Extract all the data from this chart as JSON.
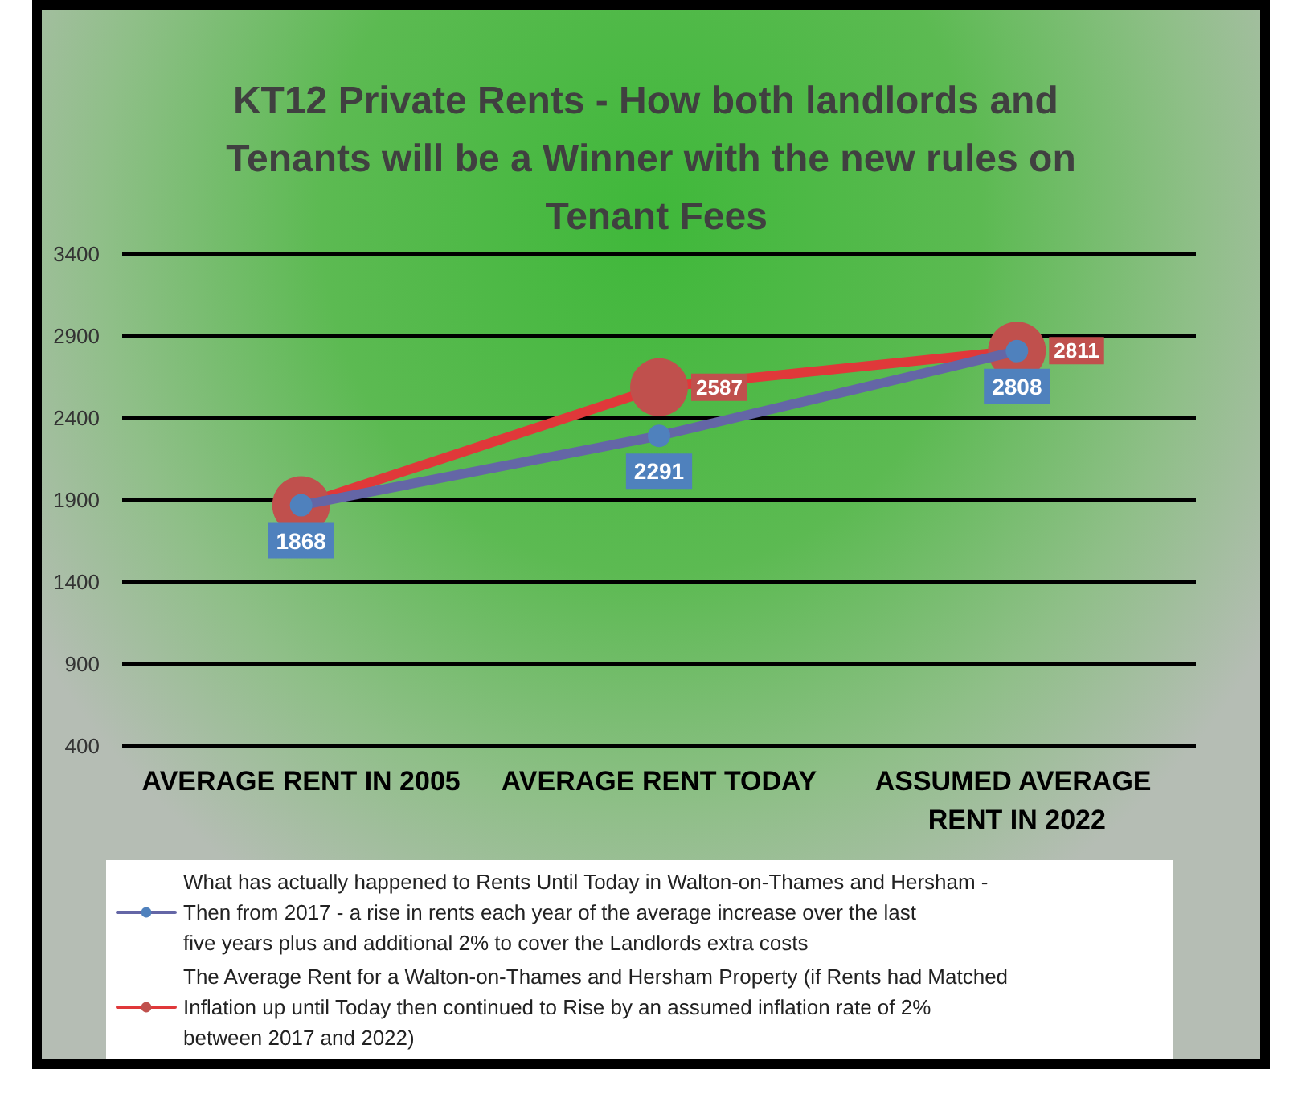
{
  "chart_data": {
    "type": "line",
    "title": "KT12 Private Rents - How both landlords and Tenants will be a Winner with the new rules on Tenant Fees",
    "categories": [
      "AVERAGE RENT IN 2005",
      "AVERAGE RENT TODAY",
      "ASSUMED AVERAGE RENT IN 2022"
    ],
    "series": [
      {
        "name": "What has actually happened to Rents Until Today in Walton-on-Thames and Hersham - Then from 2017 - a rise in rents each year of the average increase over the last five years plus and additional 2% to cover the Landlords extra costs",
        "color": "#6466a6",
        "values": [
          1868,
          2291,
          2808
        ],
        "value_labels": [
          "1868",
          "2291",
          "2808"
        ]
      },
      {
        "name": "The Average Rent for a Walton-on-Thames and Hersham Property (if Rents had Matched Inflation up until Today then continued to Rise by an assumed inflation rate of 2% between 2017 and 2022)",
        "color": "#e0383a",
        "values": [
          1868,
          2587,
          2811
        ],
        "value_labels": [
          null,
          "2587",
          "2811"
        ]
      }
    ],
    "ylim": [
      400,
      3400
    ],
    "yticks": [
      400,
      900,
      1400,
      1900,
      2400,
      2900,
      3400
    ],
    "grid": "y",
    "legend": "bottom",
    "marker": "circle",
    "line_style": "solid"
  }
}
